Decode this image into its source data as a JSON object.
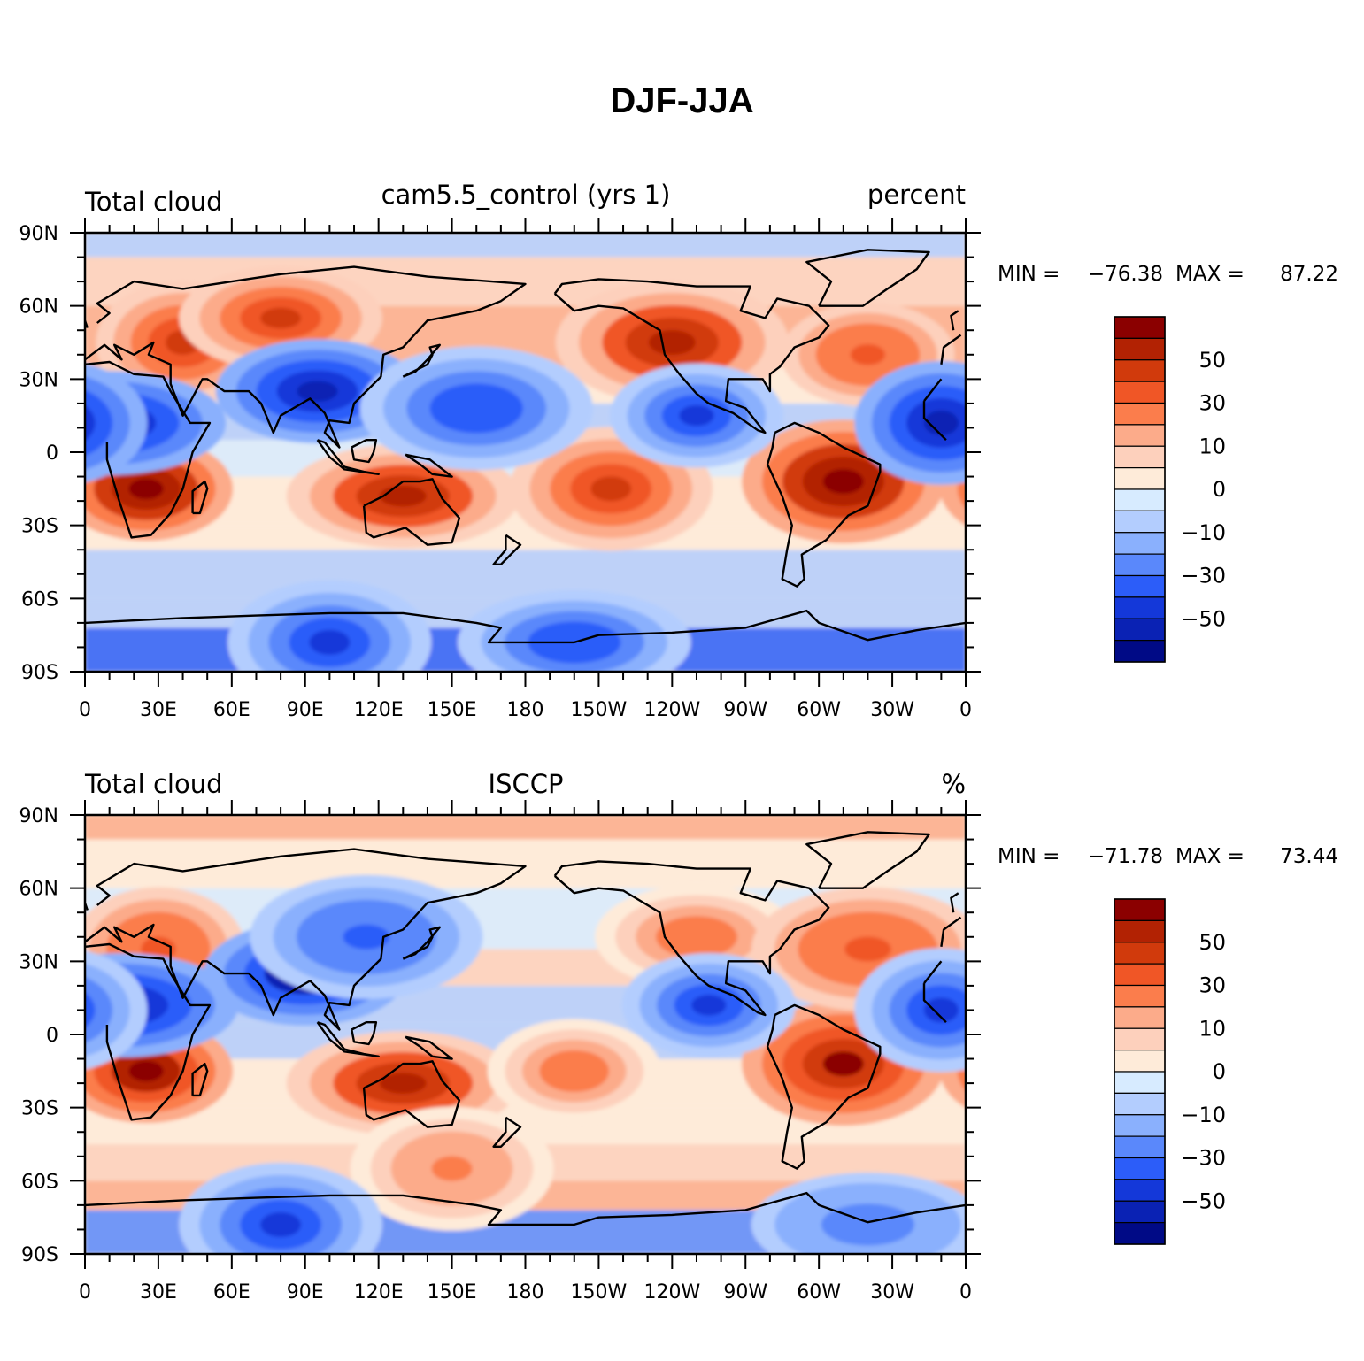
{
  "page": {
    "title": "DJF-JJA"
  },
  "panels": [
    {
      "left_title": "Total cloud",
      "center_title": "cam5.5_control (yrs 1)",
      "right_title": "percent",
      "stats": {
        "min_label": "MIN =",
        "min": "−76.38",
        "max_label": "MAX =",
        "max": "87.22"
      }
    },
    {
      "left_title": "Total cloud",
      "center_title": "ISCCP",
      "right_title": "%",
      "stats": {
        "min_label": "MIN =",
        "min": "−71.78",
        "max_label": "MAX =",
        "max": "73.44"
      }
    }
  ],
  "colorbar": {
    "colors": [
      "#8b0000",
      "#b22203",
      "#d13a0c",
      "#f05626",
      "#fb7d4c",
      "#fcab8a",
      "#fdd0bc",
      "#feebd9",
      "#d7ebff",
      "#b3cdfe",
      "#8ab0fd",
      "#5a88fb",
      "#2c5df9",
      "#1438d9",
      "#0a22b4",
      "#000a86"
    ],
    "tick_labels": [
      "50",
      "30",
      "10",
      "0",
      "−10",
      "−30",
      "−50"
    ]
  },
  "chart_data": [
    {
      "type": "heatmap",
      "title": "DJF-JJA",
      "left_title": "Total cloud",
      "center_title": "cam5.5_control (yrs 1)",
      "right_title": "percent",
      "x_ticks": [
        "0",
        "30E",
        "60E",
        "90E",
        "120E",
        "150E",
        "180",
        "150W",
        "120W",
        "90W",
        "60W",
        "30W",
        "0"
      ],
      "y_ticks": [
        "90N",
        "60N",
        "30N",
        "0",
        "30S",
        "60S",
        "90S"
      ],
      "xlim": [
        0,
        360
      ],
      "ylim": [
        -90,
        90
      ],
      "min": -76.38,
      "max": 87.22,
      "colorbar_labels": [
        "50",
        "30",
        "10",
        "0",
        "−10",
        "−30",
        "−50"
      ],
      "features": [
        {
          "lon": 25,
          "lat": -15,
          "value": 70
        },
        {
          "lon": 310,
          "lat": -12,
          "value": 70
        },
        {
          "lon": 130,
          "lat": -18,
          "value": 50
        },
        {
          "lon": 40,
          "lat": 45,
          "value": 45
        },
        {
          "lon": 80,
          "lat": 55,
          "value": 40
        },
        {
          "lon": 240,
          "lat": 45,
          "value": 50
        },
        {
          "lon": 320,
          "lat": 40,
          "value": 35
        },
        {
          "lon": 215,
          "lat": -15,
          "value": 40
        },
        {
          "lon": 10,
          "lat": 12,
          "value": -60
        },
        {
          "lon": 350,
          "lat": 12,
          "value": -60
        },
        {
          "lon": 95,
          "lat": 25,
          "value": -55
        },
        {
          "lon": 160,
          "lat": 18,
          "value": -40
        },
        {
          "lon": 250,
          "lat": 15,
          "value": -50
        },
        {
          "lon": 100,
          "lat": -78,
          "value": -50
        },
        {
          "lon": 200,
          "lat": -78,
          "value": -40
        }
      ]
    },
    {
      "type": "heatmap",
      "left_title": "Total cloud",
      "center_title": "ISCCP",
      "right_title": "%",
      "x_ticks": [
        "0",
        "30E",
        "60E",
        "90E",
        "120E",
        "150E",
        "180",
        "150W",
        "120W",
        "90W",
        "60W",
        "30W",
        "0"
      ],
      "y_ticks": [
        "90N",
        "60N",
        "30N",
        "0",
        "30S",
        "60S",
        "90S"
      ],
      "xlim": [
        0,
        360
      ],
      "ylim": [
        -90,
        90
      ],
      "min": -71.78,
      "max": 73.44,
      "colorbar_labels": [
        "50",
        "30",
        "10",
        "0",
        "−10",
        "−30",
        "−50"
      ],
      "features": [
        {
          "lon": 25,
          "lat": -15,
          "value": 65
        },
        {
          "lon": 310,
          "lat": -12,
          "value": 60
        },
        {
          "lon": 130,
          "lat": -20,
          "value": 50
        },
        {
          "lon": 30,
          "lat": 35,
          "value": 35
        },
        {
          "lon": 250,
          "lat": 40,
          "value": 25
        },
        {
          "lon": 320,
          "lat": 35,
          "value": 35
        },
        {
          "lon": 200,
          "lat": -15,
          "value": 25
        },
        {
          "lon": 150,
          "lat": -55,
          "value": 20
        },
        {
          "lon": 15,
          "lat": 12,
          "value": -55
        },
        {
          "lon": 350,
          "lat": 10,
          "value": -45
        },
        {
          "lon": 90,
          "lat": 25,
          "value": -65
        },
        {
          "lon": 115,
          "lat": 40,
          "value": -35
        },
        {
          "lon": 255,
          "lat": 12,
          "value": -45
        },
        {
          "lon": 80,
          "lat": -78,
          "value": -45
        },
        {
          "lon": 320,
          "lat": -78,
          "value": -30
        }
      ]
    }
  ]
}
